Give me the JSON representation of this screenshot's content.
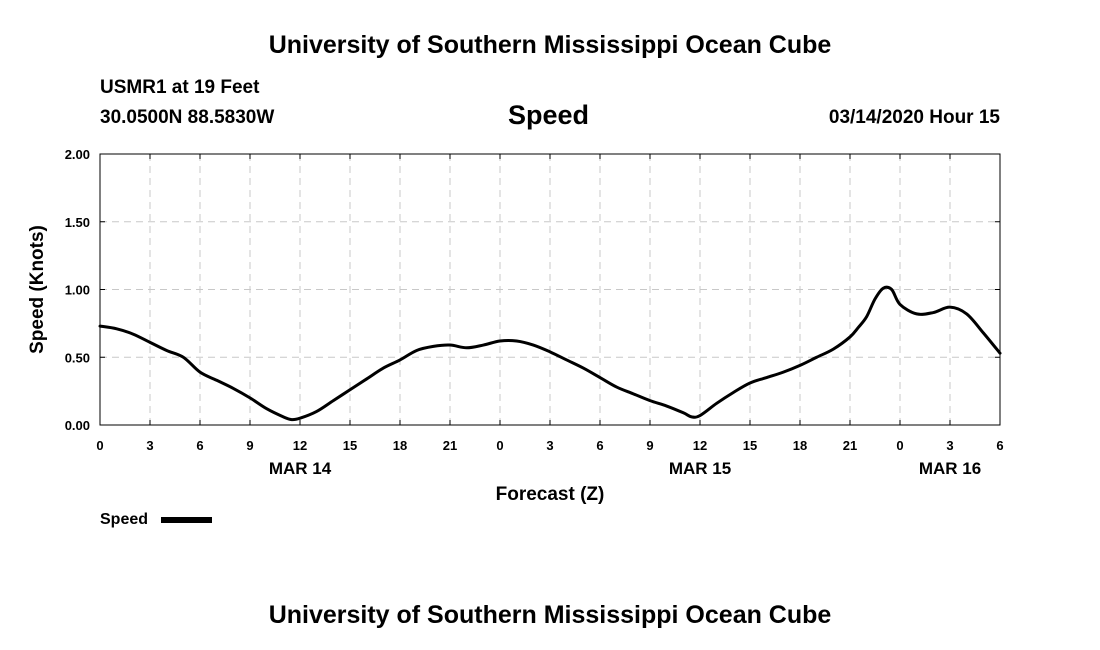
{
  "header": {
    "title": "University of Southern Mississippi Ocean Cube",
    "station": "USMR1 at 19 Feet",
    "coordinates": "30.0500N 88.5830W",
    "timestamp": "03/14/2020 Hour 15"
  },
  "footer": {
    "title": "University of Southern Mississippi Ocean Cube"
  },
  "chart_data": {
    "type": "line",
    "title": "Speed",
    "xlabel": "Forecast (Z)",
    "ylabel": "Speed (Knots)",
    "xlim": [
      0,
      54
    ],
    "ylim": [
      0,
      2.0
    ],
    "grid": true,
    "x_unit": "hours since 03/14/2020 00Z",
    "x_ticks": [
      0,
      3,
      6,
      9,
      12,
      15,
      18,
      21,
      24,
      27,
      30,
      33,
      36,
      39,
      42,
      45,
      48,
      51,
      54
    ],
    "x_tick_labels": [
      "0",
      "3",
      "6",
      "9",
      "12",
      "15",
      "18",
      "21",
      "0",
      "3",
      "6",
      "9",
      "12",
      "15",
      "18",
      "21",
      "0",
      "3",
      "6"
    ],
    "y_ticks": [
      0,
      0.5,
      1.0,
      1.5,
      2.0
    ],
    "y_tick_labels": [
      "0.00",
      "0.50",
      "1.00",
      "1.50",
      "2.00"
    ],
    "date_labels": [
      {
        "x": 12,
        "label": "MAR 14"
      },
      {
        "x": 36,
        "label": "MAR 15"
      },
      {
        "x": 51,
        "label": "MAR 16"
      }
    ],
    "legend": {
      "position": "bottom-left",
      "label": "Speed"
    },
    "series": [
      {
        "name": "Speed",
        "color": "#000000",
        "x": [
          0,
          1,
          2,
          3,
          4,
          5,
          6,
          7,
          8,
          9,
          10,
          11,
          11.5,
          12,
          13,
          14,
          15,
          16,
          17,
          18,
          19,
          20,
          21,
          22,
          23,
          24,
          25,
          26,
          27,
          28,
          29,
          30,
          31,
          32,
          33,
          34,
          35,
          35.5,
          36,
          37,
          38,
          39,
          40,
          41,
          42,
          43,
          44,
          45,
          45.5,
          46,
          46.5,
          47,
          47.5,
          48,
          49,
          50,
          51,
          52,
          53,
          54
        ],
        "values": [
          0.73,
          0.71,
          0.67,
          0.61,
          0.55,
          0.5,
          0.39,
          0.33,
          0.27,
          0.2,
          0.12,
          0.06,
          0.04,
          0.05,
          0.1,
          0.18,
          0.26,
          0.34,
          0.42,
          0.48,
          0.55,
          0.58,
          0.59,
          0.57,
          0.59,
          0.62,
          0.62,
          0.59,
          0.54,
          0.48,
          0.42,
          0.35,
          0.28,
          0.23,
          0.18,
          0.14,
          0.09,
          0.06,
          0.07,
          0.16,
          0.24,
          0.31,
          0.35,
          0.39,
          0.44,
          0.5,
          0.56,
          0.65,
          0.72,
          0.8,
          0.93,
          1.01,
          1.0,
          0.89,
          0.82,
          0.83,
          0.87,
          0.82,
          0.68,
          0.53
        ]
      }
    ]
  }
}
